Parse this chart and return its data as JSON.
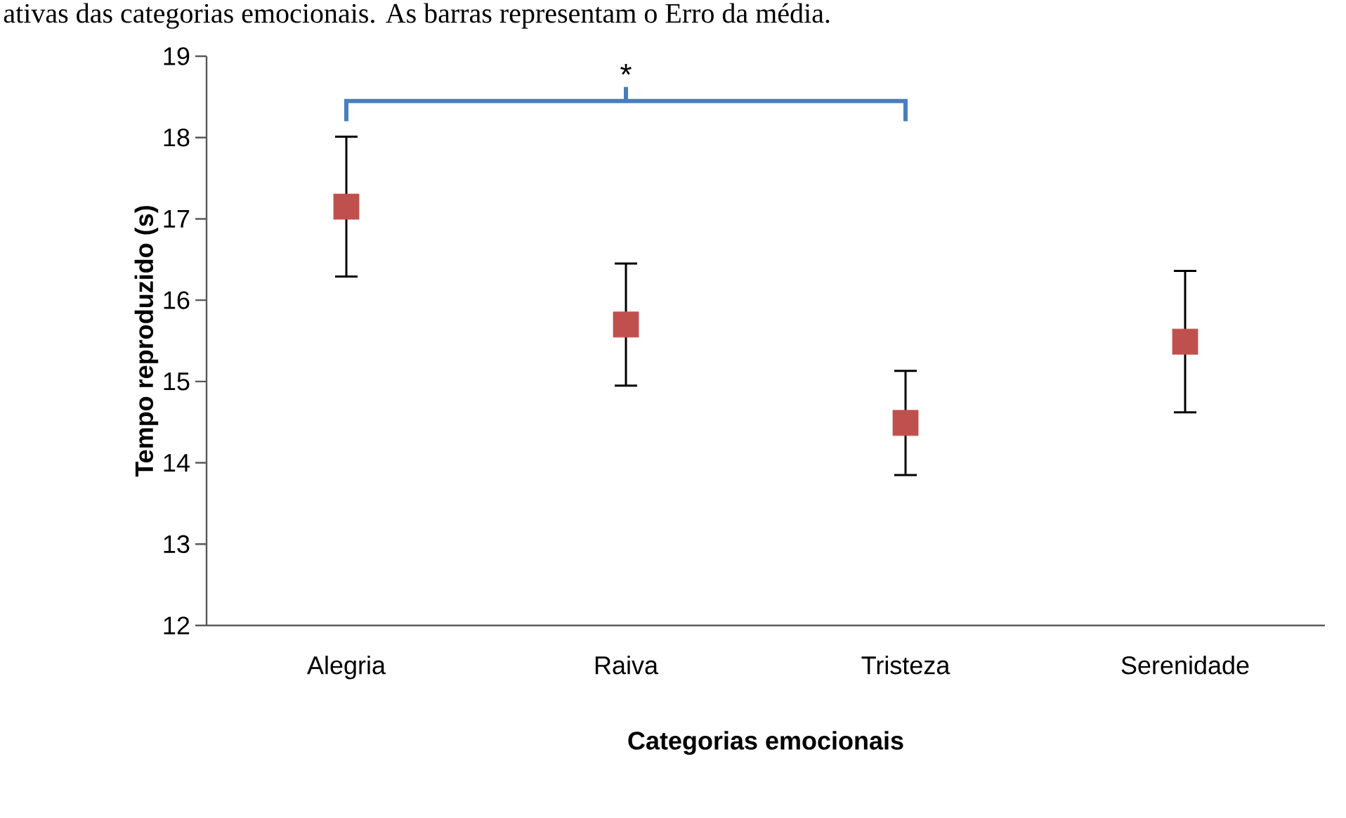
{
  "chart_data": {
    "type": "scatter",
    "xlabel": "Categorias emocionais",
    "ylabel": "Tempo reproduzido  (s)",
    "annotations": [
      "ativas das categorias emocionais. As barras representam o Erro da média.",
      "*"
    ],
    "categories": [
      "Alegria",
      "Raiva",
      "Tristeza",
      "Serenidade"
    ],
    "values": [
      17.15,
      15.7,
      14.49,
      15.49
    ],
    "errors": [
      0.86,
      0.75,
      0.64,
      0.87
    ],
    "color": "#c0504d",
    "marker": "square",
    "ylim": [
      12,
      19
    ],
    "yticks": [
      12,
      13,
      14,
      15,
      16,
      17,
      18,
      19
    ],
    "grid": false
  }
}
